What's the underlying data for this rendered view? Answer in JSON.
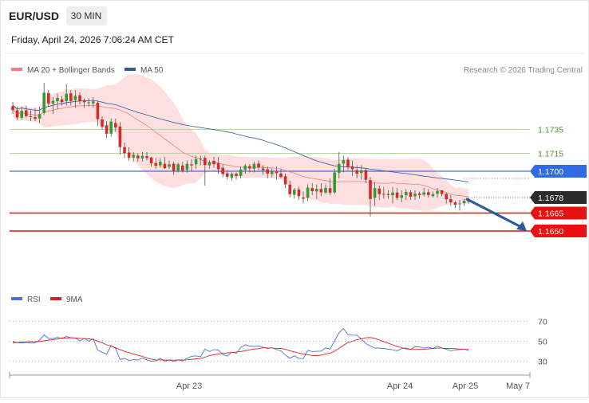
{
  "header": {
    "symbol": "EUR/USD",
    "timeframe": "30 MIN",
    "datetime": "Friday, April 24, 2026 7:06:24 AM CET",
    "copyright": "Research © 2026 Trading Central"
  },
  "legend": {
    "ma20": {
      "label": "MA 20 + Bollinger Bands",
      "color": "#f08080"
    },
    "ma50": {
      "label": "MA 50",
      "color": "#2f5a9e"
    }
  },
  "rsi_legend": {
    "rsi": {
      "label": "RSI",
      "color": "#4a72d4"
    },
    "ma9": {
      "label": "9MA",
      "color": "#e02020"
    }
  },
  "chart_data": {
    "type": "candlestick",
    "price_range": [
      1.1636,
      1.1776
    ],
    "levels": [
      {
        "label": "1.1735",
        "value": 1.1735,
        "style": "resistance-green"
      },
      {
        "label": "1.1715",
        "value": 1.1715,
        "style": "resistance-green"
      },
      {
        "label": "1.1700",
        "value": 1.17,
        "style": "pivot-blue"
      },
      {
        "label": "1.1678",
        "value": 1.1678,
        "style": "last-price"
      },
      {
        "label": "1.1665",
        "value": 1.1665,
        "style": "support-red"
      },
      {
        "label": "1.1650",
        "value": 1.165,
        "style": "support-red"
      }
    ],
    "x_ticks": [
      "Apr 23",
      "Apr 24",
      "Apr 25",
      "May 7"
    ],
    "forecast": {
      "from": 1.1677,
      "to": 1.165,
      "direction": "down"
    },
    "candles": [
      [
        1.17545,
        1.1758,
        1.1748,
        1.17512
      ],
      [
        1.1751,
        1.1754,
        1.1743,
        1.1745
      ],
      [
        1.17447,
        1.1754,
        1.1743,
        1.17506
      ],
      [
        1.1751,
        1.1755,
        1.1745,
        1.17461
      ],
      [
        1.1746,
        1.1751,
        1.1742,
        1.17454
      ],
      [
        1.17453,
        1.1753,
        1.1742,
        1.17438
      ],
      [
        1.17441,
        1.1754,
        1.174,
        1.17479
      ],
      [
        1.17488,
        1.1774,
        1.1747,
        1.17657
      ],
      [
        1.17655,
        1.1768,
        1.1754,
        1.17566
      ],
      [
        1.17566,
        1.1762,
        1.1748,
        1.17589
      ],
      [
        1.17586,
        1.1765,
        1.1752,
        1.17614
      ],
      [
        1.17601,
        1.1763,
        1.1755,
        1.17579
      ],
      [
        1.17587,
        1.1773,
        1.1755,
        1.17649
      ],
      [
        1.17652,
        1.1768,
        1.1755,
        1.17588
      ],
      [
        1.17595,
        1.1768,
        1.1753,
        1.17632
      ],
      [
        1.17636,
        1.1766,
        1.1756,
        1.17588
      ],
      [
        1.17595,
        1.1761,
        1.1753,
        1.17578
      ],
      [
        1.17573,
        1.1761,
        1.1754,
        1.17577
      ],
      [
        1.17567,
        1.1762,
        1.1753,
        1.17585
      ],
      [
        1.17573,
        1.1759,
        1.1738,
        1.17435
      ],
      [
        1.17434,
        1.1746,
        1.1735,
        1.17371
      ],
      [
        1.17385,
        1.1742,
        1.1728,
        1.17313
      ],
      [
        1.17314,
        1.1744,
        1.1729,
        1.17416
      ],
      [
        1.17404,
        1.1744,
        1.1733,
        1.17366
      ],
      [
        1.17374,
        1.1741,
        1.1714,
        1.17202
      ],
      [
        1.17202,
        1.1724,
        1.1711,
        1.17151
      ],
      [
        1.17157,
        1.172,
        1.1709,
        1.17113
      ],
      [
        1.17115,
        1.1716,
        1.1708,
        1.17137
      ],
      [
        1.17131,
        1.1715,
        1.1708,
        1.17108
      ],
      [
        1.17106,
        1.1716,
        1.1708,
        1.17129
      ],
      [
        1.17126,
        1.1716,
        1.1709,
        1.17111
      ],
      [
        1.17115,
        1.1712,
        1.1704,
        1.17066
      ],
      [
        1.17068,
        1.1711,
        1.1702,
        1.17046
      ],
      [
        1.17049,
        1.1711,
        1.1703,
        1.1708
      ],
      [
        1.17063,
        1.1712,
        1.1702,
        1.17026
      ],
      [
        1.17037,
        1.1709,
        1.1702,
        1.17058
      ],
      [
        1.17063,
        1.1708,
        1.1697,
        1.17002
      ],
      [
        1.17006,
        1.1707,
        1.1699,
        1.17059
      ],
      [
        1.17048,
        1.1708,
        1.1699,
        1.17004
      ],
      [
        1.17012,
        1.1709,
        1.1699,
        1.17062
      ],
      [
        1.17057,
        1.171,
        1.17,
        1.17049
      ],
      [
        1.17058,
        1.1713,
        1.1702,
        1.17102
      ],
      [
        1.17107,
        1.1713,
        1.1705,
        1.17108
      ],
      [
        1.17112,
        1.1713,
        1.1688,
        1.17051
      ],
      [
        1.17049,
        1.1709,
        1.1702,
        1.17075
      ],
      [
        1.17087,
        1.1712,
        1.1703,
        1.17059
      ],
      [
        1.17069,
        1.1712,
        1.1698,
        1.17016
      ],
      [
        1.17029,
        1.1706,
        1.1695,
        1.16976
      ],
      [
        1.16982,
        1.1701,
        1.1693,
        1.16954
      ],
      [
        1.16947,
        1.1699,
        1.1692,
        1.16979
      ],
      [
        1.16979,
        1.1699,
        1.1693,
        1.16961
      ],
      [
        1.16962,
        1.1704,
        1.1694,
        1.17015
      ],
      [
        1.17012,
        1.1706,
        1.1698,
        1.17047
      ],
      [
        1.17043,
        1.1706,
        1.1699,
        1.17023
      ],
      [
        1.1702,
        1.1708,
        1.1699,
        1.17062
      ],
      [
        1.17064,
        1.1709,
        1.1701,
        1.17033
      ],
      [
        1.17023,
        1.1705,
        1.1697,
        1.17008
      ],
      [
        1.17016,
        1.1704,
        1.1694,
        1.16979
      ],
      [
        1.16977,
        1.1702,
        1.1695,
        1.17002
      ],
      [
        1.16996,
        1.1704,
        1.1693,
        1.16984
      ],
      [
        1.16981,
        1.1702,
        1.1694,
        1.16952
      ],
      [
        1.16958,
        1.1698,
        1.1686,
        1.1689
      ],
      [
        1.16888,
        1.1692,
        1.1678,
        1.16808
      ],
      [
        1.16803,
        1.1686,
        1.1677,
        1.16846
      ],
      [
        1.16847,
        1.1687,
        1.1676,
        1.16791
      ],
      [
        1.16781,
        1.1683,
        1.1673,
        1.1677
      ],
      [
        1.16777,
        1.1689,
        1.1675,
        1.16863
      ],
      [
        1.16859,
        1.169,
        1.168,
        1.16833
      ],
      [
        1.16831,
        1.1689,
        1.1677,
        1.16853
      ],
      [
        1.16852,
        1.169,
        1.1679,
        1.16823
      ],
      [
        1.16821,
        1.1689,
        1.1681,
        1.16861
      ],
      [
        1.16858,
        1.1694,
        1.168,
        1.16821
      ],
      [
        1.16822,
        1.1702,
        1.1681,
        1.1699
      ],
      [
        1.16986,
        1.1716,
        1.1694,
        1.17062
      ],
      [
        1.17063,
        1.1713,
        1.1699,
        1.17094
      ],
      [
        1.17096,
        1.1712,
        1.1701,
        1.17036
      ],
      [
        1.17041,
        1.1709,
        1.1696,
        1.17016
      ],
      [
        1.17009,
        1.1705,
        1.1694,
        1.16979
      ],
      [
        1.16985,
        1.1705,
        1.1693,
        1.17008
      ],
      [
        1.1701,
        1.1702,
        1.169,
        1.16929
      ],
      [
        1.16926,
        1.1695,
        1.1662,
        1.16768
      ],
      [
        1.16777,
        1.1691,
        1.1671,
        1.16859
      ],
      [
        1.16855,
        1.1688,
        1.1676,
        1.16809
      ],
      [
        1.1681,
        1.1687,
        1.1677,
        1.16806
      ],
      [
        1.16808,
        1.1684,
        1.1677,
        1.16803
      ],
      [
        1.16799,
        1.1687,
        1.1673,
        1.16822
      ],
      [
        1.16822,
        1.1686,
        1.1676,
        1.16777
      ],
      [
        1.16777,
        1.1684,
        1.1674,
        1.16799
      ],
      [
        1.16799,
        1.1685,
        1.1676,
        1.16827
      ],
      [
        1.16824,
        1.1684,
        1.1676,
        1.16787
      ],
      [
        1.1679,
        1.1684,
        1.1676,
        1.16812
      ],
      [
        1.16813,
        1.1683,
        1.1677,
        1.16801
      ],
      [
        1.16804,
        1.1686,
        1.1679,
        1.16823
      ],
      [
        1.16824,
        1.1685,
        1.1678,
        1.16801
      ],
      [
        1.16792,
        1.1683,
        1.1678,
        1.16808
      ],
      [
        1.16811,
        1.1686,
        1.1678,
        1.16834
      ],
      [
        1.1684,
        1.1684,
        1.1679,
        1.1681
      ],
      [
        1.1681,
        1.1682,
        1.1673,
        1.16765
      ],
      [
        1.16767,
        1.168,
        1.1671,
        1.16739
      ],
      [
        1.16739,
        1.1675,
        1.1669,
        1.16719
      ],
      [
        1.16727,
        1.1676,
        1.1667,
        1.1673
      ],
      [
        1.16733,
        1.1677,
        1.1671,
        1.16753
      ],
      [
        1.16756,
        1.1678,
        1.1673,
        1.16745
      ]
    ],
    "rsi": {
      "levels": [
        70,
        50,
        30
      ],
      "range": [
        20,
        80
      ],
      "rsi_values": [
        49.9,
        48.6,
        48.4,
        48.9,
        48.2,
        48.6,
        51.1,
        56.5,
        53.0,
        52.8,
        53.9,
        52.8,
        54.8,
        53.5,
        53.4,
        50.3,
        52.8,
        50.0,
        52.5,
        41.1,
        39.0,
        37.0,
        45.7,
        42.9,
        31.8,
        32.8,
        30.8,
        31.5,
        31.2,
        33.2,
        31.3,
        30.0,
        30.4,
        32.8,
        30.1,
        31.1,
        29.7,
        31.4,
        30.2,
        32.8,
        34.9,
        35.4,
        34.4,
        42.2,
        39.7,
        41.7,
        41.3,
        36.7,
        35.1,
        39.1,
        38.0,
        43.5,
        46.6,
        45.2,
        44.7,
        45.2,
        44.0,
        42.8,
        43.5,
        41.6,
        40.3,
        36.2,
        33.0,
        35.4,
        32.9,
        32.6,
        40.9,
        39.7,
        39.9,
        40.2,
        43.4,
        42.2,
        50.3,
        58.6,
        62.8,
        56.7,
        56.2,
        56.1,
        52.3,
        47.7,
        45.3,
        43.1,
        43.3,
        42.8,
        42.0,
        41.5,
        40.5,
        42.6,
        43.4,
        41.8,
        44.4,
        44.3,
        43.1,
        44.0,
        42.7,
        45.1,
        43.2,
        41.9,
        40.6,
        41.3,
        41.7,
        42.0,
        40.7
      ],
      "ma9_values": [
        48.5,
        48.8,
        49.1,
        49.4,
        49.6,
        49.5,
        49.8,
        50.4,
        51.2,
        51.7,
        52.3,
        53.2,
        53.4,
        53.5,
        53.4,
        53.0,
        52.7,
        52.4,
        51.8,
        50.2,
        48.6,
        46.4,
        45.3,
        43.5,
        41.5,
        39.9,
        38.6,
        37.1,
        36.1,
        34.8,
        33.3,
        32.1,
        31.4,
        31.3,
        31.1,
        31.2,
        31.0,
        31.2,
        31.1,
        31.4,
        31.8,
        32.4,
        32.7,
        34.0,
        35.6,
        36.5,
        37.3,
        37.8,
        38.3,
        38.7,
        39.1,
        39.7,
        40.6,
        41.4,
        42.2,
        42.6,
        43.5,
        43.3,
        43.3,
        42.9,
        42.8,
        42.1,
        40.5,
        39.4,
        38.2,
        37.1,
        36.5,
        35.8,
        35.6,
        36.2,
        37.3,
        38.0,
        40.1,
        42.8,
        46.0,
        48.7,
        50.0,
        51.5,
        52.6,
        53.5,
        53.8,
        53.0,
        51.4,
        49.7,
        48.1,
        46.4,
        44.9,
        43.6,
        42.3,
        41.9,
        41.8,
        41.9,
        41.9,
        42.3,
        42.7,
        43.1,
        43.1,
        42.8,
        42.7,
        42.6,
        42.2,
        41.9,
        41.7
      ]
    }
  }
}
